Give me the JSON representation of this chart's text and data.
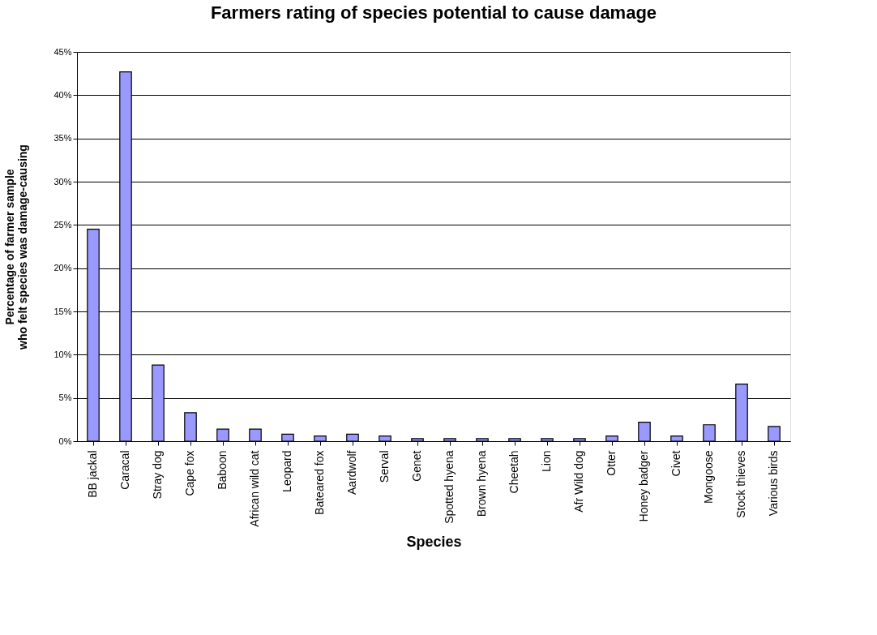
{
  "chart_data": {
    "type": "bar",
    "title": "Farmers rating of species potential to cause damage",
    "xlabel": "Species",
    "ylabel": "Percentage of farmer sample\nwho felt species was damage-causing",
    "categories": [
      "BB jackal",
      "Caracal",
      "Stray dog",
      "Cape fox",
      "Baboon",
      "African wild cat",
      "Leopard",
      "Bateared fox",
      "Aardwolf",
      "Serval",
      "Genet",
      "Spotted hyena",
      "Brown hyena",
      "Cheetah",
      "Lion",
      "Afr Wild dog",
      "Otter",
      "Honey badger",
      "Civet",
      "Mongoose",
      "Stock thieves",
      "Various birds"
    ],
    "values": [
      24.5,
      42.7,
      8.8,
      3.3,
      1.4,
      1.4,
      0.8,
      0.6,
      0.8,
      0.6,
      0.3,
      0.3,
      0.3,
      0.3,
      0.3,
      0.3,
      0.6,
      2.2,
      0.6,
      1.9,
      6.6,
      1.7
    ],
    "color": "#9999ff",
    "ylim": [
      0,
      45
    ],
    "yticks": [
      {
        "value": 0,
        "label": "0%"
      },
      {
        "value": 5,
        "label": "5%"
      },
      {
        "value": 10,
        "label": "10%"
      },
      {
        "value": 15,
        "label": "15%"
      },
      {
        "value": 20,
        "label": "20%"
      },
      {
        "value": 25,
        "label": "25%"
      },
      {
        "value": 30,
        "label": "30%"
      },
      {
        "value": 35,
        "label": "35%"
      },
      {
        "value": 40,
        "label": "40%"
      },
      {
        "value": 45,
        "label": "45%"
      }
    ],
    "grid": "y"
  }
}
